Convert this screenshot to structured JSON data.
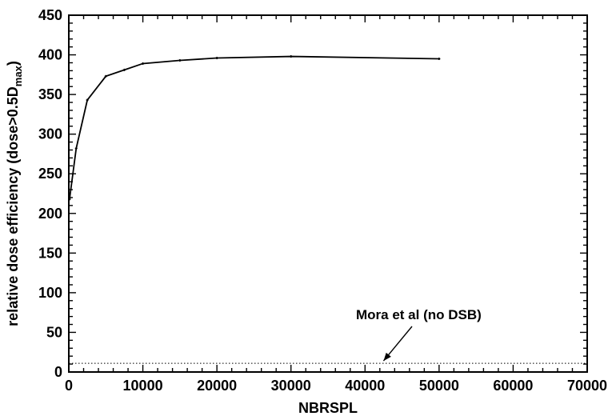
{
  "chart_data": {
    "type": "line",
    "title": "",
    "xlabel": "NBRSPL",
    "ylabel_main": "relative dose efficiency (dose>0.5D",
    "ylabel_sub": "max",
    "ylabel_close": ")",
    "xlim": [
      0,
      70000
    ],
    "ylim": [
      0,
      450
    ],
    "x_ticks": [
      0,
      10000,
      20000,
      30000,
      40000,
      50000,
      60000,
      70000
    ],
    "y_ticks": [
      0,
      50,
      100,
      150,
      200,
      250,
      300,
      350,
      400,
      450
    ],
    "grid": false,
    "series": [
      {
        "x": [
          100,
          1000,
          2500,
          5000,
          7500,
          10000,
          15000,
          20000,
          30000,
          50000
        ],
        "y": [
          218,
          282,
          343,
          373,
          381,
          389,
          393,
          396,
          398,
          395
        ]
      }
    ],
    "reference_line": {
      "y": 11,
      "style": "dotted"
    },
    "annotation": {
      "text": "Mora et al (no DSB)",
      "arrow_target": [
        42500,
        11
      ]
    }
  }
}
